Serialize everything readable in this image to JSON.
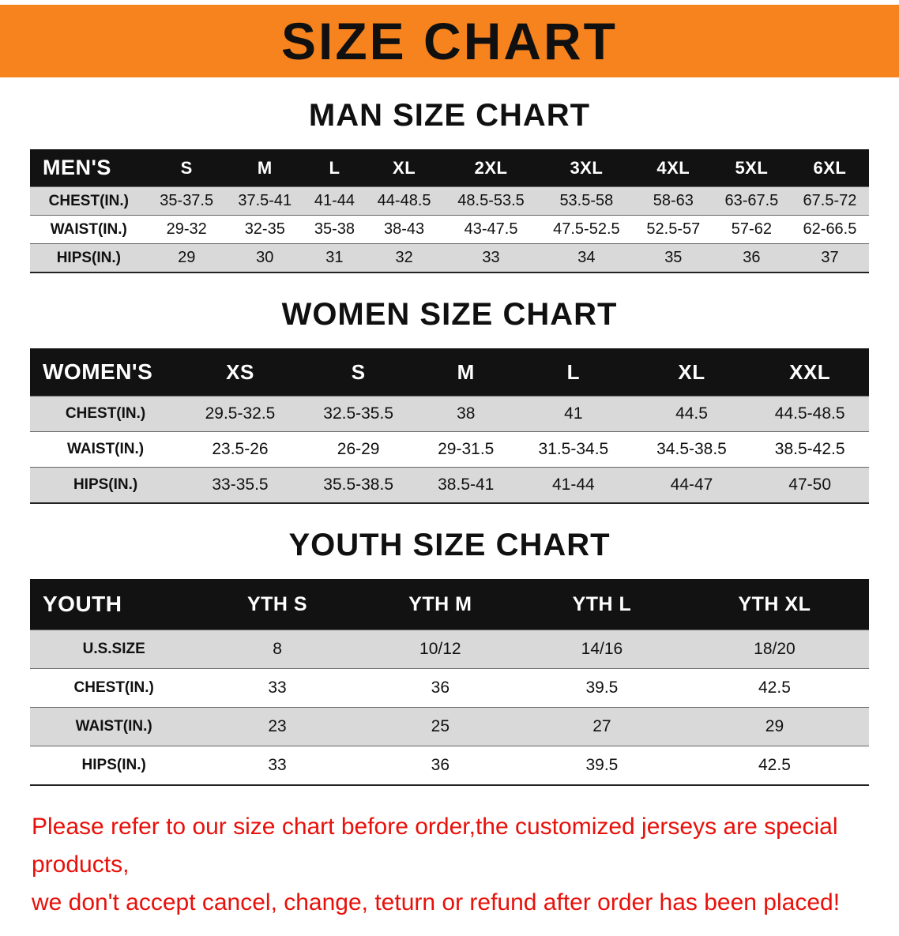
{
  "banner": {
    "title": "SIZE CHART",
    "background_color": "#f6831e",
    "text_color": "#101010"
  },
  "sections": [
    {
      "heading": "MAN SIZE CHART",
      "header_label": "MEN'S",
      "columns": [
        "S",
        "M",
        "L",
        "XL",
        "2XL",
        "3XL",
        "4XL",
        "5XL",
        "6XL"
      ],
      "rows": [
        {
          "label": "CHEST(IN.)",
          "values": [
            "35-37.5",
            "37.5-41",
            "41-44",
            "44-48.5",
            "48.5-53.5",
            "53.5-58",
            "58-63",
            "63-67.5",
            "67.5-72"
          ]
        },
        {
          "label": "WAIST(IN.)",
          "values": [
            "29-32",
            "32-35",
            "35-38",
            "38-43",
            "43-47.5",
            "47.5-52.5",
            "52.5-57",
            "57-62",
            "62-66.5"
          ]
        },
        {
          "label": "HIPS(IN.)",
          "values": [
            "29",
            "30",
            "31",
            "32",
            "33",
            "34",
            "35",
            "36",
            "37"
          ]
        }
      ]
    },
    {
      "heading": "WOMEN SIZE CHART",
      "header_label": "WOMEN'S",
      "columns": [
        "XS",
        "S",
        "M",
        "L",
        "XL",
        "XXL"
      ],
      "rows": [
        {
          "label": "CHEST(IN.)",
          "values": [
            "29.5-32.5",
            "32.5-35.5",
            "38",
            "41",
            "44.5",
            "44.5-48.5"
          ]
        },
        {
          "label": "WAIST(IN.)",
          "values": [
            "23.5-26",
            "26-29",
            "29-31.5",
            "31.5-34.5",
            "34.5-38.5",
            "38.5-42.5"
          ]
        },
        {
          "label": "HIPS(IN.)",
          "values": [
            "33-35.5",
            "35.5-38.5",
            "38.5-41",
            "41-44",
            "44-47",
            "47-50"
          ]
        }
      ]
    },
    {
      "heading": "YOUTH SIZE CHART",
      "header_label": "YOUTH",
      "columns": [
        "YTH S",
        "YTH M",
        "YTH L",
        "YTH XL"
      ],
      "rows": [
        {
          "label": "U.S.SIZE",
          "values": [
            "8",
            "10/12",
            "14/16",
            "18/20"
          ]
        },
        {
          "label": "CHEST(IN.)",
          "values": [
            "33",
            "36",
            "39.5",
            "42.5"
          ]
        },
        {
          "label": "WAIST(IN.)",
          "values": [
            "23",
            "25",
            "27",
            "29"
          ]
        },
        {
          "label": "HIPS(IN.)",
          "values": [
            "33",
            "36",
            "39.5",
            "42.5"
          ]
        }
      ]
    }
  ],
  "footer": {
    "line1": "Please refer to our size chart before order,the customized jerseys are special products,",
    "line2": "we don't accept cancel, change, teturn or refund after order has been placed!",
    "text_color": "#e8100a"
  }
}
